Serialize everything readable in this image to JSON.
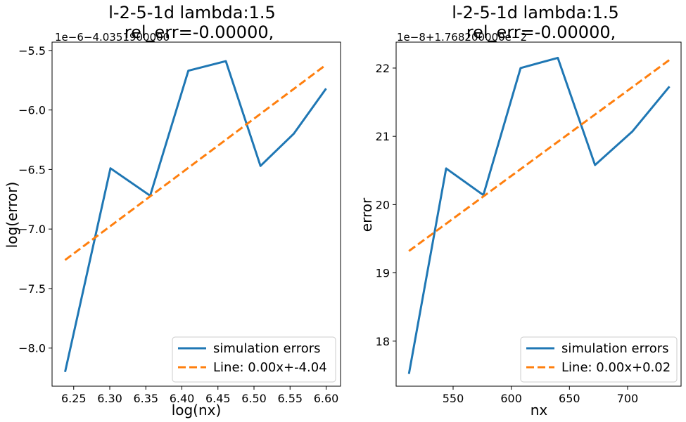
{
  "chart_data": [
    {
      "type": "line",
      "title_line1": "l-2-5-1d lambda:1.5",
      "title_line2": "rel_err=-0.00000,",
      "xlabel": "log(nx)",
      "ylabel": "log(error)",
      "offset_text": "1e−6−4.0351900000",
      "xlim": [
        6.22,
        6.62
      ],
      "ylim": [
        -8.32,
        -5.43
      ],
      "xticks": [
        6.25,
        6.3,
        6.35,
        6.4,
        6.45,
        6.5,
        6.55,
        6.6
      ],
      "xtick_labels": [
        "6.25",
        "6.30",
        "6.35",
        "6.40",
        "6.45",
        "6.50",
        "6.55",
        "6.60"
      ],
      "yticks": [
        -8.0,
        -7.5,
        -7.0,
        -6.5,
        -6.0,
        -5.5
      ],
      "ytick_labels": [
        "−8.0",
        "−7.5",
        "−7.0",
        "−6.5",
        "−6.0",
        "−5.5"
      ],
      "legend_position": "lower-right",
      "series": [
        {
          "name": "simulation errors",
          "color": "#1f77b4",
          "dash": "solid",
          "x": [
            6.238,
            6.301,
            6.356,
            6.409,
            6.461,
            6.509,
            6.555,
            6.6
          ],
          "y": [
            -8.2,
            -6.49,
            -6.72,
            -5.67,
            -5.59,
            -6.47,
            -6.2,
            -5.82
          ]
        },
        {
          "name": "Line: 0.00x+-4.04",
          "color": "#ff7f0e",
          "dash": "dashed",
          "x": [
            6.238,
            6.6
          ],
          "y": [
            -7.26,
            -5.62
          ]
        }
      ]
    },
    {
      "type": "line",
      "title_line1": "l-2-5-1d lambda:1.5",
      "title_line2": "rel_err=-0.00000,",
      "xlabel": "nx",
      "ylabel": "error",
      "offset_text": "1e−8+1.768200000e−2",
      "xlim": [
        501,
        746
      ],
      "ylim": [
        17.34,
        22.38
      ],
      "xticks": [
        550,
        600,
        650,
        700
      ],
      "xtick_labels": [
        "550",
        "600",
        "650",
        "700"
      ],
      "yticks": [
        18,
        19,
        20,
        21,
        22
      ],
      "ytick_labels": [
        "18",
        "19",
        "20",
        "21",
        "22"
      ],
      "legend_position": "lower-right",
      "series": [
        {
          "name": "simulation errors",
          "color": "#1f77b4",
          "dash": "solid",
          "x": [
            512,
            544,
            576,
            608,
            640,
            672,
            704,
            736
          ],
          "y": [
            17.52,
            20.53,
            20.14,
            22.0,
            22.15,
            20.58,
            21.07,
            21.73
          ]
        },
        {
          "name": "Line: 0.00x+0.02",
          "color": "#ff7f0e",
          "dash": "dashed",
          "x": [
            512,
            736
          ],
          "y": [
            19.32,
            22.12
          ]
        }
      ]
    }
  ]
}
